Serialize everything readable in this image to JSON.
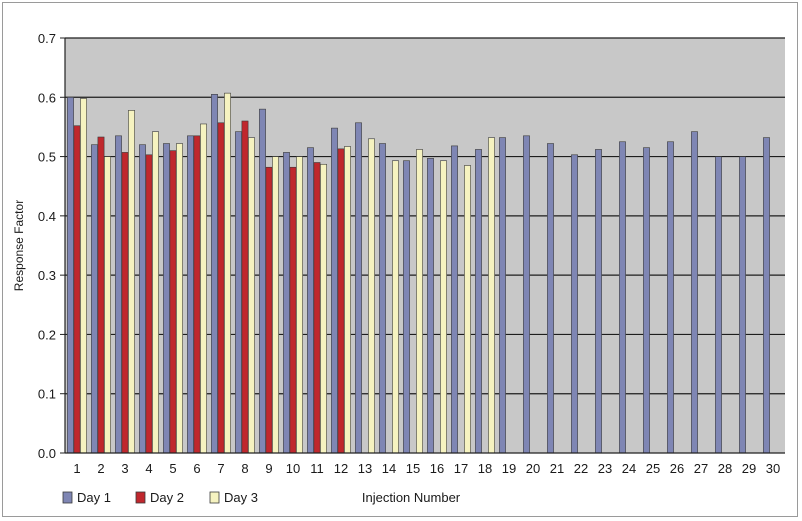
{
  "chart_data": {
    "type": "bar",
    "xlabel": "Injection Number",
    "ylabel": "Response Factor",
    "ylim": [
      0,
      0.7
    ],
    "yticks": [
      "0.0",
      "0.1",
      "0.2",
      "0.3",
      "0.4",
      "0.5",
      "0.6",
      "0.7"
    ],
    "grid": "horizontal",
    "legend_position": "bottom-left",
    "categories": [
      "1",
      "2",
      "3",
      "4",
      "5",
      "6",
      "7",
      "8",
      "9",
      "10",
      "11",
      "12",
      "13",
      "14",
      "15",
      "16",
      "17",
      "18",
      "19",
      "20",
      "21",
      "22",
      "23",
      "24",
      "25",
      "26",
      "27",
      "28",
      "29",
      "30"
    ],
    "series": [
      {
        "name": "Day 1",
        "color": "#7f86b4",
        "values": [
          0.6,
          0.52,
          0.535,
          0.52,
          0.522,
          0.535,
          0.605,
          0.542,
          0.58,
          0.507,
          0.515,
          0.548,
          0.557,
          0.522,
          0.493,
          0.497,
          0.518,
          0.512,
          0.532,
          0.535,
          0.522,
          0.503,
          0.512,
          0.525,
          0.515,
          0.525,
          0.542,
          0.5,
          0.5,
          0.532
        ]
      },
      {
        "name": "Day 2",
        "color": "#c0272d",
        "values": [
          0.552,
          0.533,
          0.507,
          0.503,
          0.51,
          0.535,
          0.557,
          0.56,
          0.482,
          0.482,
          0.49,
          0.513,
          null,
          null,
          null,
          null,
          null,
          null,
          null,
          null,
          null,
          null,
          null,
          null,
          null,
          null,
          null,
          null,
          null,
          null
        ]
      },
      {
        "name": "Day 3",
        "color": "#f6f3c0",
        "values": [
          0.598,
          0.5,
          0.578,
          0.542,
          0.522,
          0.555,
          0.607,
          0.532,
          0.5,
          0.5,
          0.487,
          0.517,
          0.53,
          0.493,
          0.512,
          0.493,
          0.485,
          0.532,
          null,
          null,
          null,
          null,
          null,
          null,
          null,
          null,
          null,
          null,
          null,
          null
        ]
      }
    ]
  },
  "colors": {
    "plot_background": "#c8c8c8",
    "gridline": "#1e1e1e",
    "bar_outline": "#3a3a3a"
  }
}
